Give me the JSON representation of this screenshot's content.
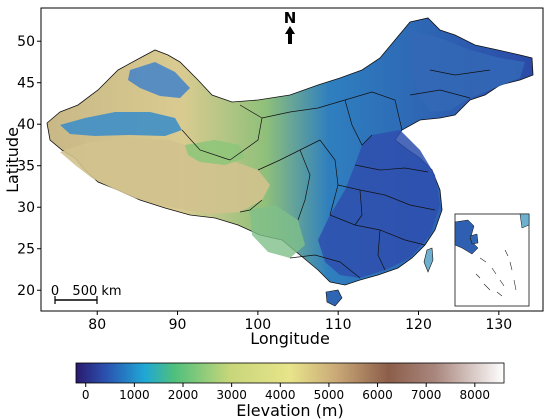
{
  "map": {
    "xlabel": "Longitude",
    "ylabel": "Latitude",
    "x_ticks": [
      "80",
      "90",
      "100",
      "110",
      "120",
      "130"
    ],
    "x_tick_values": [
      80,
      90,
      100,
      110,
      120,
      130
    ],
    "y_ticks": [
      "20",
      "25",
      "30",
      "35",
      "40",
      "45",
      "50"
    ],
    "y_tick_values": [
      20,
      25,
      30,
      35,
      40,
      45,
      50
    ],
    "lon_range": [
      73,
      135.5
    ],
    "lat_range": [
      17.5,
      54
    ],
    "north_arrow_label": "N",
    "scale_bar": {
      "start_label": "0",
      "end_label": "500 km"
    },
    "inset": "South China Sea islands",
    "boundaries": "provincial borders in black"
  },
  "colorbar": {
    "title": "Elevation (m)",
    "ticks": [
      "0",
      "1000",
      "2000",
      "3000",
      "4000",
      "5000",
      "6000",
      "7000",
      "8000"
    ],
    "tick_values": [
      0,
      1000,
      2000,
      3000,
      4000,
      5000,
      6000,
      7000,
      8000
    ],
    "range": [
      -200,
      8600
    ],
    "stops": [
      {
        "value": -200,
        "color": "#2a1a6e"
      },
      {
        "value": 400,
        "color": "#2a52b0"
      },
      {
        "value": 1200,
        "color": "#1fa7d6"
      },
      {
        "value": 1800,
        "color": "#4fc07c"
      },
      {
        "value": 3000,
        "color": "#c8d67a"
      },
      {
        "value": 4200,
        "color": "#e8e48a"
      },
      {
        "value": 5200,
        "color": "#c9a877"
      },
      {
        "value": 6200,
        "color": "#8c5e4a"
      },
      {
        "value": 7200,
        "color": "#a9877e"
      },
      {
        "value": 8600,
        "color": "#ffffff"
      }
    ]
  }
}
